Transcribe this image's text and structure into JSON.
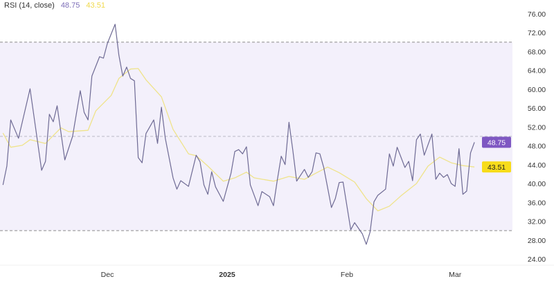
{
  "legend": {
    "indicator": "RSI (14, close)",
    "rsi_value": "48.75",
    "ma_value": "43.51"
  },
  "colors": {
    "rsi_line": "#6e6a94",
    "ma_line": "#efe38a",
    "band_fill": "#f3f0fb",
    "rsi_badge": "#7e57c2",
    "ma_badge": "#f7dc1a"
  },
  "chart_data": {
    "type": "line",
    "title": "RSI (14, close)",
    "ylim": [
      24,
      76
    ],
    "yticks": [
      "76.00",
      "72.00",
      "68.00",
      "64.00",
      "60.00",
      "56.00",
      "52.00",
      "48.00",
      "44.00",
      "40.00",
      "36.00",
      "32.00",
      "28.00",
      "24.00"
    ],
    "xticks": [
      {
        "label": "Dec",
        "date": "2024-12-01",
        "bold": false
      },
      {
        "label": "2025",
        "date": "2025-01-01",
        "bold": true
      },
      {
        "label": "Feb",
        "date": "2025-02-01",
        "bold": false
      },
      {
        "label": "Mar",
        "date": "2025-03-01",
        "bold": false
      }
    ],
    "bands": {
      "upper": 70,
      "middle": 50,
      "lower": 30
    },
    "grid": false,
    "last_labels": {
      "rsi": "48.75",
      "ma": "43.51"
    },
    "series": [
      {
        "key": "rsi",
        "points": [
          [
            "2024-11-04",
            39.7
          ],
          [
            "2024-11-05",
            43.7
          ],
          [
            "2024-11-06",
            53.5
          ],
          [
            "2024-11-08",
            49.6
          ],
          [
            "2024-11-11",
            60.1
          ],
          [
            "2024-11-13",
            48.5
          ],
          [
            "2024-11-14",
            42.8
          ],
          [
            "2024-11-15",
            44.7
          ],
          [
            "2024-11-16",
            54.7
          ],
          [
            "2024-11-17",
            53.1
          ],
          [
            "2024-11-18",
            56.5
          ],
          [
            "2024-11-20",
            45.0
          ],
          [
            "2024-11-22",
            50.0
          ],
          [
            "2024-11-24",
            59.7
          ],
          [
            "2024-11-25",
            55.1
          ],
          [
            "2024-11-26",
            53.5
          ],
          [
            "2024-11-27",
            62.8
          ],
          [
            "2024-11-29",
            66.9
          ],
          [
            "2024-11-30",
            66.6
          ],
          [
            "2024-12-01",
            69.7
          ],
          [
            "2024-12-03",
            73.8
          ],
          [
            "2024-12-04",
            67.2
          ],
          [
            "2024-12-05",
            62.8
          ],
          [
            "2024-12-06",
            64.7
          ],
          [
            "2024-12-07",
            62.3
          ],
          [
            "2024-12-08",
            61.8
          ],
          [
            "2024-12-09",
            45.5
          ],
          [
            "2024-12-10",
            44.4
          ],
          [
            "2024-12-11",
            50.6
          ],
          [
            "2024-12-13",
            53.5
          ],
          [
            "2024-12-14",
            48.5
          ],
          [
            "2024-12-15",
            56.2
          ],
          [
            "2024-12-16",
            49.6
          ],
          [
            "2024-12-18",
            41.2
          ],
          [
            "2024-12-19",
            38.8
          ],
          [
            "2024-12-20",
            40.6
          ],
          [
            "2024-12-22",
            39.4
          ],
          [
            "2024-12-24",
            46.0
          ],
          [
            "2024-12-25",
            44.6
          ],
          [
            "2024-12-26",
            39.7
          ],
          [
            "2024-12-27",
            37.7
          ],
          [
            "2024-12-28",
            42.5
          ],
          [
            "2024-12-29",
            39.3
          ],
          [
            "2024-12-31",
            36.2
          ],
          [
            "2025-01-02",
            42.2
          ],
          [
            "2025-01-03",
            46.8
          ],
          [
            "2025-01-04",
            47.2
          ],
          [
            "2025-01-05",
            46.3
          ],
          [
            "2025-01-06",
            47.8
          ],
          [
            "2025-01-07",
            39.7
          ],
          [
            "2025-01-09",
            35.3
          ],
          [
            "2025-01-10",
            38.3
          ],
          [
            "2025-01-12",
            37.2
          ],
          [
            "2025-01-13",
            35.3
          ],
          [
            "2025-01-14",
            40.8
          ],
          [
            "2025-01-15",
            45.8
          ],
          [
            "2025-01-16",
            44.0
          ],
          [
            "2025-01-17",
            53.0
          ],
          [
            "2025-01-18",
            47.1
          ],
          [
            "2025-01-19",
            40.5
          ],
          [
            "2025-01-21",
            43.0
          ],
          [
            "2025-01-22",
            41.3
          ],
          [
            "2025-01-23",
            42.5
          ],
          [
            "2025-01-24",
            46.5
          ],
          [
            "2025-01-25",
            46.3
          ],
          [
            "2025-01-26",
            43.4
          ],
          [
            "2025-01-28",
            34.9
          ],
          [
            "2025-01-29",
            36.8
          ],
          [
            "2025-01-30",
            40.2
          ],
          [
            "2025-01-31",
            40.3
          ],
          [
            "2025-02-02",
            30.2
          ],
          [
            "2025-02-03",
            31.7
          ],
          [
            "2025-02-05",
            29.3
          ],
          [
            "2025-02-06",
            27.1
          ],
          [
            "2025-02-07",
            29.7
          ],
          [
            "2025-02-08",
            36.1
          ],
          [
            "2025-02-09",
            37.5
          ],
          [
            "2025-02-11",
            38.8
          ],
          [
            "2025-02-12",
            46.3
          ],
          [
            "2025-02-13",
            43.7
          ],
          [
            "2025-02-14",
            47.7
          ],
          [
            "2025-02-16",
            43.4
          ],
          [
            "2025-02-17",
            44.7
          ],
          [
            "2025-02-18",
            40.6
          ],
          [
            "2025-02-19",
            49.3
          ],
          [
            "2025-02-20",
            50.5
          ],
          [
            "2025-02-21",
            46.0
          ],
          [
            "2025-02-23",
            50.5
          ],
          [
            "2025-02-24",
            40.9
          ],
          [
            "2025-02-25",
            42.2
          ],
          [
            "2025-02-26",
            41.3
          ],
          [
            "2025-02-27",
            41.9
          ],
          [
            "2025-02-28",
            40.0
          ],
          [
            "2025-03-01",
            39.4
          ],
          [
            "2025-03-02",
            47.4
          ],
          [
            "2025-03-03",
            37.7
          ],
          [
            "2025-03-04",
            38.4
          ],
          [
            "2025-03-05",
            46.5
          ],
          [
            "2025-03-06",
            48.75
          ]
        ]
      },
      {
        "key": "ma",
        "points": [
          [
            "2024-11-04",
            50.7
          ],
          [
            "2024-11-06",
            47.7
          ],
          [
            "2024-11-09",
            48.1
          ],
          [
            "2024-11-11",
            49.3
          ],
          [
            "2024-11-13",
            48.9
          ],
          [
            "2024-11-15",
            48.5
          ],
          [
            "2024-11-19",
            51.8
          ],
          [
            "2024-11-21",
            51.0
          ],
          [
            "2024-11-26",
            51.3
          ],
          [
            "2024-11-28",
            55.4
          ],
          [
            "2024-12-02",
            58.7
          ],
          [
            "2024-12-04",
            62.3
          ],
          [
            "2024-12-07",
            64.3
          ],
          [
            "2024-12-09",
            64.4
          ],
          [
            "2024-12-11",
            62.0
          ],
          [
            "2024-12-15",
            58.4
          ],
          [
            "2024-12-18",
            51.5
          ],
          [
            "2024-12-22",
            46.3
          ],
          [
            "2024-12-24",
            45.9
          ],
          [
            "2024-12-27",
            43.7
          ],
          [
            "2024-12-31",
            40.5
          ],
          [
            "2025-01-03",
            41.2
          ],
          [
            "2025-01-06",
            42.4
          ],
          [
            "2025-01-08",
            41.2
          ],
          [
            "2025-01-13",
            40.5
          ],
          [
            "2025-01-17",
            41.5
          ],
          [
            "2025-01-21",
            40.9
          ],
          [
            "2025-01-24",
            42.2
          ],
          [
            "2025-01-27",
            43.5
          ],
          [
            "2025-01-30",
            42.3
          ],
          [
            "2025-02-03",
            40.3
          ],
          [
            "2025-02-06",
            36.8
          ],
          [
            "2025-02-09",
            34.2
          ],
          [
            "2025-02-12",
            35.2
          ],
          [
            "2025-02-15",
            37.4
          ],
          [
            "2025-02-19",
            40.0
          ],
          [
            "2025-02-22",
            43.7
          ],
          [
            "2025-02-25",
            45.6
          ],
          [
            "2025-02-28",
            44.4
          ],
          [
            "2025-03-03",
            43.8
          ],
          [
            "2025-03-06",
            43.51
          ]
        ]
      }
    ]
  }
}
